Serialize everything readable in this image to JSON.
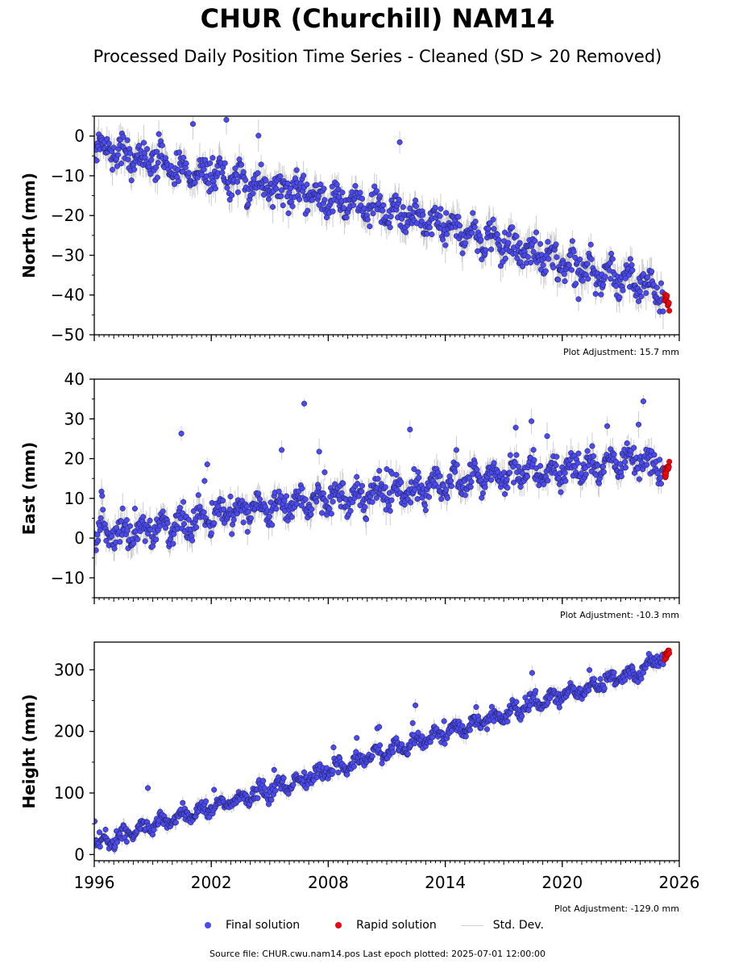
{
  "title": "CHUR (Churchill) NAM14",
  "subtitle": "Processed Daily Position Time Series - Cleaned (SD > 20 Removed)",
  "legend": {
    "final": "Final solution",
    "rapid": "Rapid solution",
    "std": "Std. Dev."
  },
  "footer": "Source file: CHUR.cwu.nam14.pos  Last epoch plotted: 2025-07-01 12:00:00",
  "colors": {
    "final": "#4a4af0",
    "rapid": "#e8080c",
    "std": "#b8b8b8",
    "edge": "#1a1a3a"
  },
  "chart_data": [
    {
      "type": "scatter",
      "ylabel": "North (mm)",
      "xlim": [
        1996,
        2026
      ],
      "ylim": [
        -50,
        5
      ],
      "yticks": [
        -50,
        -40,
        -30,
        -20,
        -10,
        0
      ],
      "xticks": [
        1996,
        2002,
        2008,
        2014,
        2020,
        2026
      ],
      "show_xtick_labels": false,
      "adjustment": "Plot Adjustment: 15.7 mm",
      "final_trend": [
        [
          1996,
          -2
        ],
        [
          2000,
          -8
        ],
        [
          2004,
          -12
        ],
        [
          2008,
          -16
        ],
        [
          2012,
          -20
        ],
        [
          2016,
          -26
        ],
        [
          2020,
          -32
        ],
        [
          2024,
          -37
        ],
        [
          2025.2,
          -40
        ]
      ],
      "rapid_trend": [
        [
          2025.25,
          -40
        ],
        [
          2025.5,
          -43
        ]
      ],
      "noise": 3.5,
      "seasonal": 2
    },
    {
      "type": "scatter",
      "ylabel": "East (mm)",
      "xlim": [
        1996,
        2026
      ],
      "ylim": [
        -15,
        40
      ],
      "yticks": [
        -10,
        0,
        10,
        20,
        30,
        40
      ],
      "xticks": [
        1996,
        2002,
        2008,
        2014,
        2020,
        2026
      ],
      "show_xtick_labels": false,
      "adjustment": "Plot Adjustment: -10.3 mm",
      "final_trend": [
        [
          1996,
          1
        ],
        [
          2000,
          3
        ],
        [
          2004,
          7
        ],
        [
          2008,
          10
        ],
        [
          2012,
          12
        ],
        [
          2016,
          15
        ],
        [
          2020,
          17
        ],
        [
          2024,
          20
        ],
        [
          2025.2,
          17
        ]
      ],
      "rapid_trend": [
        [
          2025.25,
          16
        ],
        [
          2025.5,
          18
        ]
      ],
      "noise": 3,
      "seasonal": 2
    },
    {
      "type": "scatter",
      "ylabel": "Height (mm)",
      "xlim": [
        1996,
        2026
      ],
      "ylim": [
        -10,
        345
      ],
      "yticks": [
        0,
        100,
        200,
        300
      ],
      "xticks": [
        1996,
        2002,
        2008,
        2014,
        2020,
        2026
      ],
      "show_xtick_labels": true,
      "adjustment": "Plot Adjustment: -129.0 mm",
      "final_trend": [
        [
          1996,
          15
        ],
        [
          2000,
          58
        ],
        [
          2004,
          95
        ],
        [
          2008,
          135
        ],
        [
          2012,
          178
        ],
        [
          2016,
          218
        ],
        [
          2020,
          258
        ],
        [
          2024,
          300
        ],
        [
          2025.2,
          325
        ]
      ],
      "rapid_trend": [
        [
          2025.25,
          320
        ],
        [
          2025.5,
          330
        ]
      ],
      "noise": 10,
      "seasonal": 8
    }
  ]
}
